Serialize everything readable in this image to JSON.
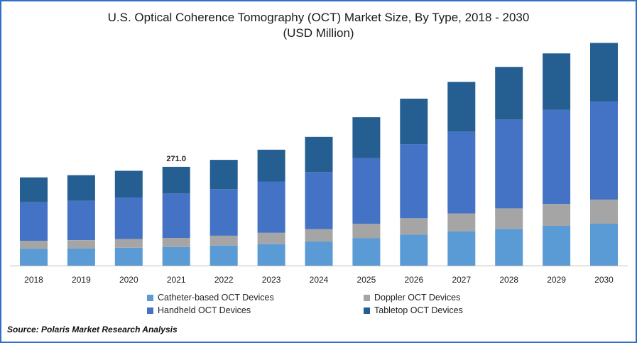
{
  "chart_data": {
    "type": "bar",
    "stacked": true,
    "title_line1": "U.S. Optical Coherence Tomography (OCT) Market Size, By Type, 2018 - 2030",
    "title_line2": "(USD Million)",
    "categories": [
      "2018",
      "2019",
      "2020",
      "2021",
      "2022",
      "2023",
      "2024",
      "2025",
      "2026",
      "2027",
      "2028",
      "2029",
      "2030"
    ],
    "series": [
      {
        "name": "Catheter-based OCT Devices",
        "color": "#5b9bd5",
        "values": [
          46,
          47,
          49,
          51,
          55,
          59,
          66,
          75,
          85,
          94,
          101,
          109,
          115
        ]
      },
      {
        "name": "Doppler OCT Devices",
        "color": "#a5a5a5",
        "values": [
          22,
          23,
          24,
          25,
          27,
          31,
          34,
          40,
          45,
          49,
          56,
          60,
          66
        ]
      },
      {
        "name": "Handheld OCT Devices",
        "color": "#4472c4",
        "values": [
          106,
          108,
          114,
          122,
          128,
          141,
          157,
          180,
          203,
          225,
          243,
          258,
          270
        ]
      },
      {
        "name": "Tabletop OCT Devices",
        "color": "#255e91",
        "values": [
          68,
          70,
          73,
          73,
          80,
          87,
          96,
          112,
          125,
          136,
          145,
          155,
          160
        ]
      }
    ],
    "data_labels": [
      {
        "category": "2021",
        "text": "271.0"
      }
    ],
    "ylim": [
      0,
      600
    ],
    "xlabel": "",
    "ylabel": "",
    "legend_position": "bottom"
  },
  "source": "Source: Polaris  Market Research Analysis"
}
